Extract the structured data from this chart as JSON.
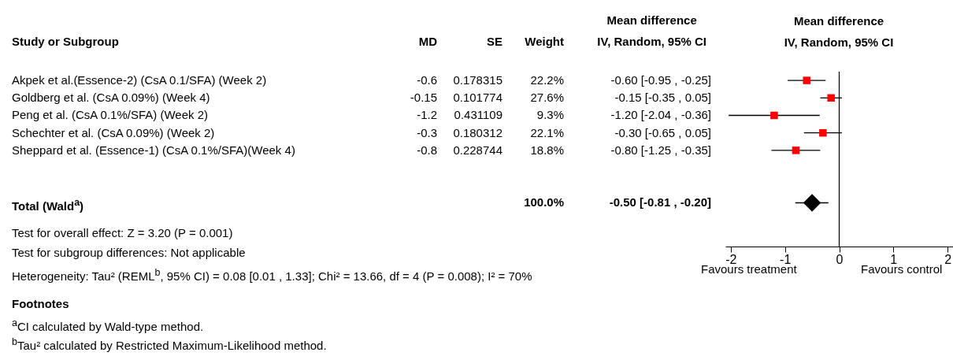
{
  "chart_data": [
    {
      "type": "other",
      "categories": [
        "Study or Subgroup",
        "MD",
        "SE",
        "Weight",
        "Mean difference\nIV, Random, 95% CI"
      ],
      "y_categories": [
        "Akpek et al.(Essence-2) (CsA 0.1/SFA) (Week 2)",
        "Goldberg et al. (CsA 0.09%) (Week 4)",
        "Peng et al. (CsA 0.1%/SFA) (Week 2)",
        "Schechter et al. (CsA 0.09%) (Week 2)",
        "Sheppard et al. (Essence-1) (CsA 0.1%/SFA)(Week 4)",
        null,
        null,
        "Total (Wald$^{a}$)"
      ],
      "cell_labels": [
        [
          "-0.6",
          "0.178315",
          "22.2%",
          "-0.60 [-0.95 , -0.25]"
        ],
        [
          "-0.15",
          "0.101774",
          "27.6%",
          "-0.15 [-0.35 , 0.05]"
        ],
        [
          "-1.2",
          "0.431109",
          "9.3%",
          "-1.20 [-2.04 , -0.36]"
        ],
        [
          "-0.3",
          "0.180312",
          "22.1%",
          "-0.30 [-0.65 , 0.05]"
        ],
        [
          "-0.8",
          "0.228744",
          "18.8%",
          "-0.80 [-1.25 , -0.35]"
        ],
        null,
        null,
        [
          null,
          null,
          "100.0%",
          "-0.50 [-0.81 , -0.20]"
        ]
      ],
      "annotations": [
        "Test for overall effect: Z = 3.20 (P = 0.001)",
        "Test for subgroup differences: Not applicable",
        "Heterogeneity: Tau² (REML$^{b}$, 95% CI) = 0.08 [0.01 , 1.33]; Chi² = 13.66, df = 4 (P = 0.008); I² = 70%",
        "Footnotes",
        "$^{a}$CI calculated by Wald-type method.",
        "$^{b}$Tau² calculated by Restricted Maximum-Likelihood method."
      ]
    },
    {
      "type": "scatter",
      "orientation": "horizontal",
      "title": "Mean difference\nIV, Random, 95% CI",
      "categories": [
        null,
        null,
        null,
        null,
        null,
        null,
        null,
        null,
        null,
        null
      ],
      "series": [
        {
          "color": "#ff0000",
          "marker": "square",
          "values": [
            -0.6,
            -0.15,
            -1.2,
            -0.3,
            -0.8,
            null,
            null,
            null,
            null,
            null
          ],
          "errors": [
            [
              -0.95,
              -0.25
            ],
            [
              -0.35,
              0.05
            ],
            [
              -2.04,
              -0.36
            ],
            [
              -0.65,
              0.05
            ],
            [
              -1.25,
              -0.35
            ],
            null,
            null,
            null,
            null,
            null
          ]
        },
        {
          "color": "#000000",
          "marker": "diamond",
          "values": [
            null,
            null,
            null,
            null,
            null,
            null,
            null,
            -0.5,
            null,
            null
          ],
          "errors": [
            null,
            null,
            null,
            null,
            null,
            null,
            null,
            [
              -0.81,
              -0.2
            ],
            null,
            null
          ]
        }
      ],
      "xlim": [
        -2.1,
        2.1
      ],
      "xticks": [
        -2,
        -1,
        0,
        1,
        2
      ],
      "ref_lines": [
        {
          "axis": "x",
          "value": 0
        }
      ],
      "annotations": [
        "Favours treatment",
        "Favours control"
      ],
      "grid": false
    }
  ]
}
